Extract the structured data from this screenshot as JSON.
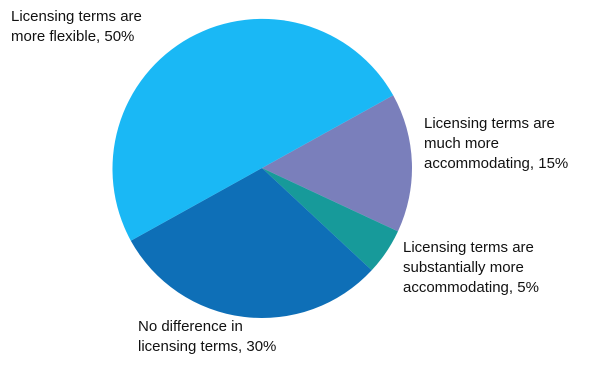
{
  "chart_data": {
    "type": "pie",
    "title": "",
    "slices": [
      {
        "label_lines": [
          "Licensing terms are",
          "much more",
          "accommodating, 15%"
        ],
        "value": 15,
        "color": "#7a7fbb"
      },
      {
        "label_lines": [
          "Licensing terms are",
          "substantially more",
          "accommodating, 5%"
        ],
        "value": 5,
        "color": "#179a9a"
      },
      {
        "label_lines": [
          "No difference in",
          "licensing terms, 30%"
        ],
        "value": 30,
        "color": "#0e6fb7"
      },
      {
        "label_lines": [
          "Licensing terms are",
          "more flexible, 50%"
        ],
        "value": 50,
        "color": "#1ab8f5"
      }
    ]
  }
}
